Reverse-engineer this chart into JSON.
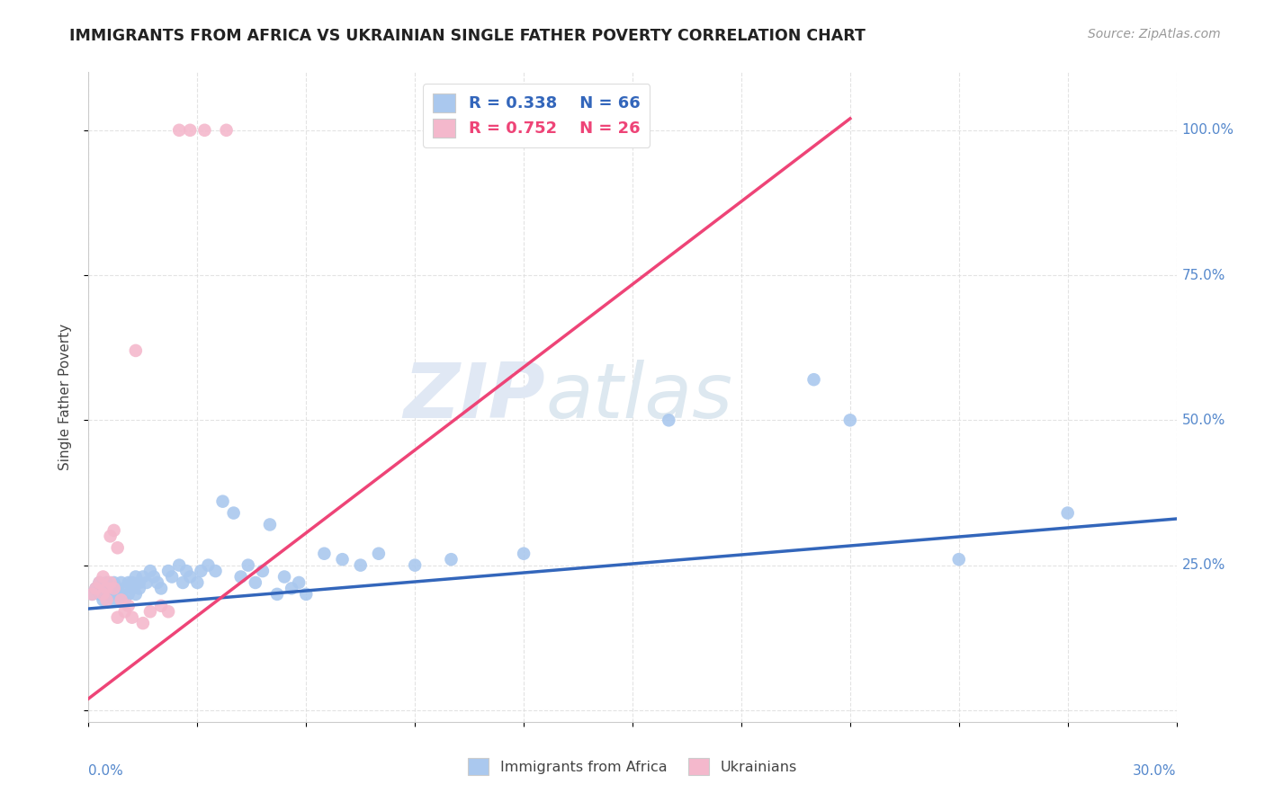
{
  "title": "IMMIGRANTS FROM AFRICA VS UKRAINIAN SINGLE FATHER POVERTY CORRELATION CHART",
  "source": "Source: ZipAtlas.com",
  "ylabel": "Single Father Poverty",
  "legend_r1": "R = 0.338",
  "legend_n1": "N = 66",
  "legend_r2": "R = 0.752",
  "legend_n2": "N = 26",
  "legend_label1": "Immigrants from Africa",
  "legend_label2": "Ukrainians",
  "blue_color": "#aac8ee",
  "pink_color": "#f4b8cc",
  "blue_line_color": "#3366bb",
  "pink_line_color": "#ee4477",
  "watermark_zip": "ZIP",
  "watermark_atlas": "atlas",
  "xlim": [
    0.0,
    0.3
  ],
  "ylim": [
    -0.02,
    1.1
  ],
  "blue_x": [
    0.001,
    0.002,
    0.003,
    0.003,
    0.004,
    0.004,
    0.005,
    0.005,
    0.006,
    0.006,
    0.007,
    0.007,
    0.008,
    0.008,
    0.009,
    0.009,
    0.01,
    0.01,
    0.011,
    0.011,
    0.012,
    0.012,
    0.013,
    0.013,
    0.014,
    0.014,
    0.015,
    0.016,
    0.017,
    0.018,
    0.019,
    0.02,
    0.022,
    0.023,
    0.025,
    0.026,
    0.027,
    0.028,
    0.03,
    0.031,
    0.033,
    0.035,
    0.037,
    0.04,
    0.042,
    0.044,
    0.046,
    0.048,
    0.05,
    0.052,
    0.054,
    0.056,
    0.058,
    0.06,
    0.065,
    0.07,
    0.075,
    0.08,
    0.09,
    0.1,
    0.12,
    0.16,
    0.2,
    0.21,
    0.24,
    0.27
  ],
  "blue_y": [
    0.2,
    0.21,
    0.2,
    0.22,
    0.19,
    0.21,
    0.2,
    0.22,
    0.21,
    0.2,
    0.22,
    0.19,
    0.21,
    0.2,
    0.22,
    0.2,
    0.21,
    0.19,
    0.22,
    0.2,
    0.21,
    0.22,
    0.2,
    0.23,
    0.21,
    0.22,
    0.23,
    0.22,
    0.24,
    0.23,
    0.22,
    0.21,
    0.24,
    0.23,
    0.25,
    0.22,
    0.24,
    0.23,
    0.22,
    0.24,
    0.25,
    0.24,
    0.36,
    0.34,
    0.23,
    0.25,
    0.22,
    0.24,
    0.32,
    0.2,
    0.23,
    0.21,
    0.22,
    0.2,
    0.27,
    0.26,
    0.25,
    0.27,
    0.25,
    0.26,
    0.27,
    0.5,
    0.57,
    0.5,
    0.26,
    0.34
  ],
  "pink_x": [
    0.001,
    0.002,
    0.003,
    0.004,
    0.004,
    0.005,
    0.005,
    0.006,
    0.006,
    0.007,
    0.007,
    0.008,
    0.008,
    0.009,
    0.01,
    0.011,
    0.012,
    0.013,
    0.015,
    0.017,
    0.02,
    0.022,
    0.025,
    0.028,
    0.032,
    0.038
  ],
  "pink_y": [
    0.2,
    0.21,
    0.22,
    0.2,
    0.23,
    0.21,
    0.19,
    0.3,
    0.22,
    0.31,
    0.21,
    0.28,
    0.16,
    0.19,
    0.17,
    0.18,
    0.16,
    0.62,
    0.15,
    0.17,
    0.18,
    0.17,
    1.0,
    1.0,
    1.0,
    1.0
  ],
  "blue_trend_x": [
    0.0,
    0.3
  ],
  "blue_trend_y": [
    0.175,
    0.33
  ],
  "pink_trend_x": [
    0.0,
    0.21
  ],
  "pink_trend_y": [
    0.02,
    1.02
  ]
}
